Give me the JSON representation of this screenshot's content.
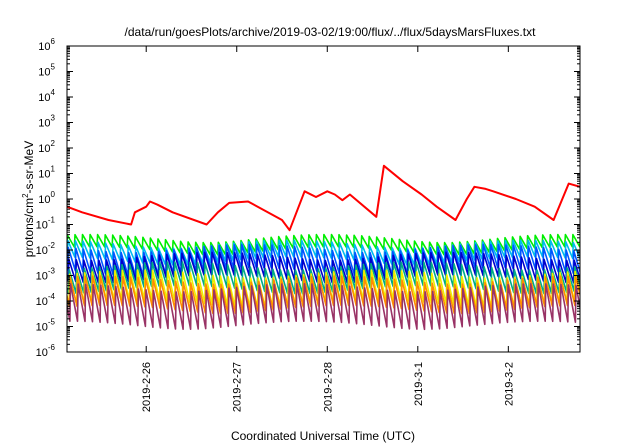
{
  "chart_data": {
    "type": "line",
    "title": "/data/run/goesPlots/archive/2019-03-02/19:00/flux/../flux/5daysMarsFluxes.txt",
    "xlabel": "Coordinated Universal Time (UTC)",
    "ylabel": "protons/cm2-s-sr-MeV",
    "ylabel_parts": {
      "pre": "protons/cm",
      "sup": "2",
      "post": "-s-sr-MeV"
    },
    "yscale": "log",
    "ylim": [
      1e-06,
      1000000.0
    ],
    "y_ticks": [
      {
        "value": 1e-06,
        "base": "10",
        "exp": "-6"
      },
      {
        "value": 1e-05,
        "base": "10",
        "exp": "-5"
      },
      {
        "value": 0.0001,
        "base": "10",
        "exp": "-4"
      },
      {
        "value": 0.001,
        "base": "10",
        "exp": "-3"
      },
      {
        "value": 0.01,
        "base": "10",
        "exp": "-2"
      },
      {
        "value": 0.1,
        "base": "10",
        "exp": "-1"
      },
      {
        "value": 1,
        "base": "10",
        "exp": "0"
      },
      {
        "value": 10,
        "base": "10",
        "exp": "1"
      },
      {
        "value": 100,
        "base": "10",
        "exp": "2"
      },
      {
        "value": 1000,
        "base": "10",
        "exp": "3"
      },
      {
        "value": 10000,
        "base": "10",
        "exp": "4"
      },
      {
        "value": 100000,
        "base": "10",
        "exp": "5"
      },
      {
        "value": 1000000,
        "base": "10",
        "exp": "6"
      }
    ],
    "x_ticks": [
      {
        "value": "2019-02-26",
        "label": "2019-2-26"
      },
      {
        "value": "2019-02-27",
        "label": "2019-2-27"
      },
      {
        "value": "2019-02-28",
        "label": "2019-2-28"
      },
      {
        "value": "2019-03-01",
        "label": "2019-3-1"
      },
      {
        "value": "2019-03-02",
        "label": "2019-3-2"
      }
    ],
    "xlim": [
      "2019-02-25T03:00",
      "2019-03-02T19:00"
    ],
    "grid": false,
    "legend": "none",
    "series": [
      {
        "color": "#ff0000",
        "style": "decay-with-injections",
        "x": [
          "2019-02-25T03:00",
          "2019-02-25T07:00",
          "2019-02-25T14:00",
          "2019-02-25T20:00",
          "2019-02-25T21:00",
          "2019-02-26T00:00",
          "2019-02-26T01:00",
          "2019-02-26T03:00",
          "2019-02-26T07:00",
          "2019-02-26T16:00",
          "2019-02-26T19:00",
          "2019-02-26T22:00",
          "2019-02-27T03:00",
          "2019-02-27T12:00",
          "2019-02-27T14:00",
          "2019-02-27T18:00",
          "2019-02-27T21:00",
          "2019-02-28T00:00",
          "2019-02-28T02:00",
          "2019-02-28T04:00",
          "2019-02-28T06:00",
          "2019-02-28T13:00",
          "2019-02-28T15:00",
          "2019-02-28T20:00",
          "2019-03-01T01:00",
          "2019-03-01T05:00",
          "2019-03-01T10:00",
          "2019-03-01T13:00",
          "2019-03-01T15:00",
          "2019-03-01T18:00",
          "2019-03-01T20:00",
          "2019-03-02T02:00",
          "2019-03-02T07:00",
          "2019-03-02T12:00",
          "2019-03-02T16:00",
          "2019-03-02T19:00"
        ],
        "y": [
          0.5,
          0.3,
          0.15,
          0.1,
          0.3,
          0.5,
          0.8,
          0.6,
          0.3,
          0.1,
          0.3,
          0.7,
          0.8,
          0.15,
          0.06,
          2.0,
          1.2,
          2.0,
          1.5,
          0.9,
          1.5,
          0.2,
          20.0,
          5.0,
          1.5,
          0.5,
          0.15,
          1.0,
          3.0,
          2.5,
          2.0,
          1.0,
          0.5,
          0.15,
          4.0,
          3.0
        ]
      },
      {
        "color": "#00ee00",
        "base": 0.03,
        "depth": 0.01
      },
      {
        "color": "#00bbee",
        "base": 0.018,
        "depth": 0.004
      },
      {
        "color": "#0055ff",
        "base": 0.012,
        "depth": 0.0015
      },
      {
        "color": "#0000cc",
        "base": 0.006,
        "depth": 0.0008
      },
      {
        "color": "#00aa88",
        "base": 0.0025,
        "depth": 0.0003
      },
      {
        "color": "#eeee00",
        "base": 0.0012,
        "depth": 8e-05
      },
      {
        "color": "#ff8c00",
        "base": 0.0007,
        "depth": 5e-05
      },
      {
        "color": "#993366",
        "base": 0.00035,
        "depth": 1.2e-05
      }
    ]
  }
}
